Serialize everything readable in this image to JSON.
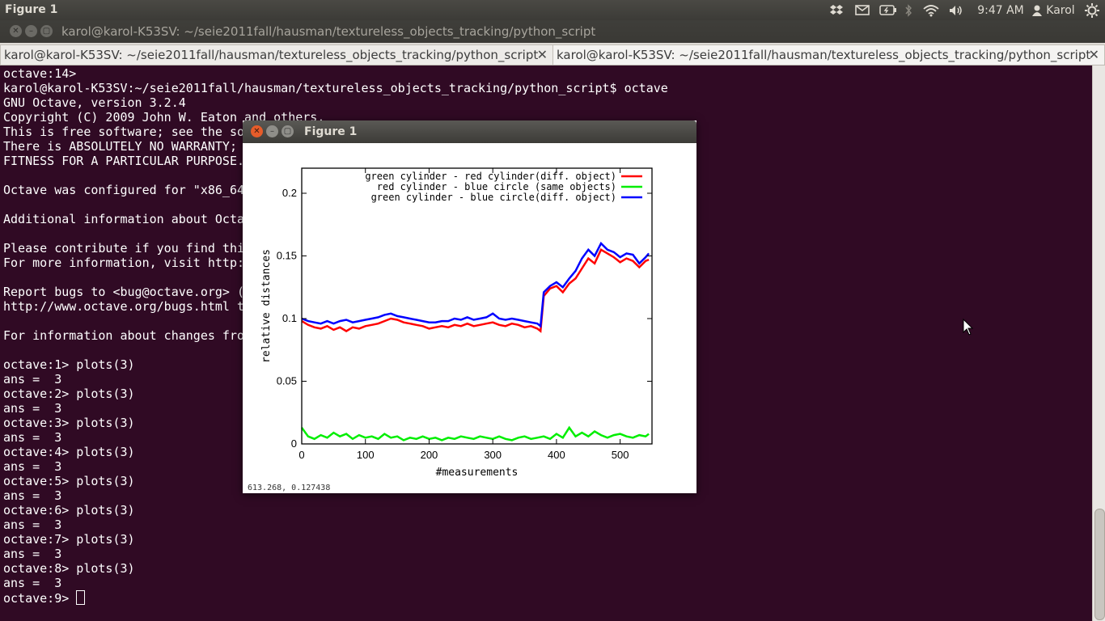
{
  "top_panel": {
    "app_title": "Figure 1",
    "clock": "9:47 AM",
    "user": "Karol",
    "icons": [
      "dropbox-icon",
      "mail-icon",
      "battery-icon",
      "bluetooth-icon",
      "wifi-icon",
      "volume-icon",
      "user-icon",
      "gear-icon"
    ]
  },
  "window": {
    "title": "karol@karol-K53SV: ~/seie2011fall/hausman/textureless_objects_tracking/python_script"
  },
  "tabs": [
    {
      "label": "karol@karol-K53SV: ~/seie2011fall/hausman/textureless_objects_tracking/python_script",
      "active": false
    },
    {
      "label": "karol@karol-K53SV: ~/seie2011fall/hausman/textureless_objects_tracking/python_script",
      "active": true
    }
  ],
  "terminal": {
    "lines": [
      "octave:14>",
      "karol@karol-K53SV:~/seie2011fall/hausman/textureless_objects_tracking/python_script$ octave",
      "GNU Octave, version 3.2.4",
      "Copyright (C) 2009 John W. Eaton and others.",
      "This is free software; see the so",
      "There is ABSOLUTELY NO WARRANTY; ",
      "FITNESS FOR A PARTICULAR PURPOSE.",
      "",
      "Octave was configured for \"x86_64",
      "",
      "Additional information about Octa",
      "",
      "Please contribute if you find thi",
      "For more information, visit http:",
      "",
      "Report bugs to <bug@octave.org> (",
      "http://www.octave.org/bugs.html t",
      "",
      "For information about changes fro",
      "",
      "octave:1> plots(3)",
      "ans =  3",
      "octave:2> plots(3)",
      "ans =  3",
      "octave:3> plots(3)",
      "ans =  3",
      "octave:4> plots(3)",
      "ans =  3",
      "octave:5> plots(3)",
      "ans =  3",
      "octave:6> plots(3)",
      "ans =  3",
      "octave:7> plots(3)",
      "ans =  3",
      "octave:8> plots(3)",
      "ans =  3"
    ],
    "prompt": "octave:9> "
  },
  "figure": {
    "title": "Figure 1",
    "coord_readout": "613.268,  0.127438"
  },
  "chart_data": {
    "type": "line",
    "xlabel": "#measurements",
    "ylabel": "relative distances",
    "xlim": [
      0,
      550
    ],
    "ylim": [
      0,
      0.22
    ],
    "xticks": [
      0,
      100,
      200,
      300,
      400,
      500
    ],
    "yticks": [
      0,
      0.05,
      0.1,
      0.15,
      0.2
    ],
    "ytick_labels": [
      "0",
      "0.05",
      "0.1",
      "0.15",
      "0.2"
    ],
    "legend_position": "top-right",
    "series": [
      {
        "name": "green cylinder - red cylinder(diff. object)",
        "color": "#ff0000",
        "x": [
          0,
          10,
          20,
          30,
          40,
          50,
          60,
          70,
          80,
          90,
          100,
          110,
          120,
          130,
          140,
          150,
          160,
          170,
          180,
          190,
          200,
          210,
          220,
          230,
          240,
          250,
          260,
          270,
          280,
          290,
          300,
          310,
          320,
          330,
          340,
          350,
          360,
          370,
          375,
          380,
          390,
          400,
          410,
          420,
          430,
          440,
          450,
          460,
          470,
          480,
          490,
          500,
          510,
          520,
          530,
          540,
          545
        ],
        "values": [
          0.098,
          0.095,
          0.093,
          0.092,
          0.094,
          0.091,
          0.093,
          0.09,
          0.093,
          0.092,
          0.094,
          0.095,
          0.096,
          0.098,
          0.1,
          0.099,
          0.097,
          0.096,
          0.095,
          0.094,
          0.092,
          0.093,
          0.094,
          0.093,
          0.095,
          0.094,
          0.096,
          0.094,
          0.095,
          0.096,
          0.097,
          0.095,
          0.094,
          0.096,
          0.095,
          0.093,
          0.094,
          0.092,
          0.09,
          0.118,
          0.124,
          0.126,
          0.121,
          0.128,
          0.132,
          0.14,
          0.148,
          0.144,
          0.155,
          0.152,
          0.149,
          0.145,
          0.148,
          0.146,
          0.141,
          0.146,
          0.147
        ]
      },
      {
        "name": "red cylinder - blue circle (same objects)",
        "color": "#00ee00",
        "x": [
          0,
          10,
          20,
          30,
          40,
          50,
          60,
          70,
          80,
          90,
          100,
          110,
          120,
          130,
          140,
          150,
          160,
          170,
          180,
          190,
          200,
          210,
          220,
          230,
          240,
          250,
          260,
          270,
          280,
          290,
          300,
          310,
          320,
          330,
          340,
          350,
          360,
          370,
          380,
          390,
          400,
          410,
          420,
          430,
          440,
          450,
          460,
          470,
          480,
          490,
          500,
          510,
          520,
          530,
          540,
          545
        ],
        "values": [
          0.013,
          0.006,
          0.004,
          0.007,
          0.005,
          0.009,
          0.006,
          0.008,
          0.004,
          0.007,
          0.005,
          0.006,
          0.004,
          0.008,
          0.005,
          0.006,
          0.003,
          0.005,
          0.004,
          0.006,
          0.004,
          0.005,
          0.003,
          0.005,
          0.004,
          0.006,
          0.005,
          0.004,
          0.006,
          0.005,
          0.004,
          0.006,
          0.004,
          0.003,
          0.005,
          0.006,
          0.004,
          0.005,
          0.006,
          0.004,
          0.008,
          0.005,
          0.013,
          0.006,
          0.009,
          0.006,
          0.01,
          0.007,
          0.005,
          0.007,
          0.008,
          0.006,
          0.005,
          0.007,
          0.006,
          0.008
        ]
      },
      {
        "name": "green cylinder - blue circle(diff. object)",
        "color": "#0000ff",
        "x": [
          0,
          10,
          20,
          30,
          40,
          50,
          60,
          70,
          80,
          90,
          100,
          110,
          120,
          130,
          140,
          150,
          160,
          170,
          180,
          190,
          200,
          210,
          220,
          230,
          240,
          250,
          260,
          270,
          280,
          290,
          300,
          310,
          320,
          330,
          340,
          350,
          360,
          370,
          375,
          380,
          390,
          400,
          410,
          420,
          430,
          440,
          450,
          460,
          470,
          480,
          490,
          500,
          510,
          520,
          530,
          540,
          545
        ],
        "values": [
          0.1,
          0.098,
          0.097,
          0.096,
          0.098,
          0.096,
          0.098,
          0.099,
          0.097,
          0.098,
          0.099,
          0.1,
          0.101,
          0.103,
          0.104,
          0.102,
          0.101,
          0.1,
          0.099,
          0.098,
          0.097,
          0.097,
          0.098,
          0.098,
          0.1,
          0.099,
          0.101,
          0.099,
          0.1,
          0.101,
          0.104,
          0.1,
          0.099,
          0.1,
          0.099,
          0.098,
          0.097,
          0.096,
          0.094,
          0.121,
          0.126,
          0.129,
          0.125,
          0.132,
          0.138,
          0.148,
          0.155,
          0.15,
          0.16,
          0.155,
          0.153,
          0.149,
          0.152,
          0.151,
          0.144,
          0.149,
          0.152
        ]
      }
    ]
  }
}
